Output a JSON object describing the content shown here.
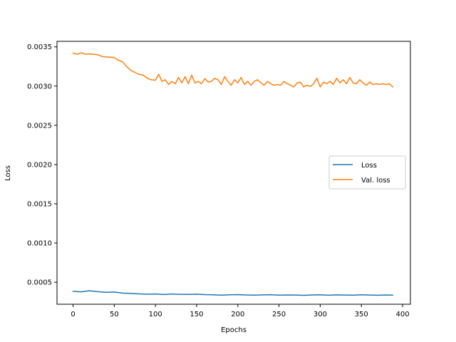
{
  "chart_data": {
    "type": "line",
    "xlabel": "Epochs",
    "ylabel": "Loss",
    "xlim": [
      -19.5,
      409.5
    ],
    "ylim": [
      0.00022,
      0.00357
    ],
    "xticks": [
      0,
      50,
      100,
      150,
      200,
      250,
      300,
      350,
      400
    ],
    "xtick_labels": [
      "0",
      "50",
      "100",
      "150",
      "200",
      "250",
      "300",
      "350",
      "400"
    ],
    "yticks": [
      0.0005,
      0.001,
      0.0015,
      0.002,
      0.0025,
      0.003,
      0.0035
    ],
    "ytick_labels": [
      "0.0005",
      "0.0010",
      "0.0015",
      "0.0020",
      "0.0025",
      "0.0030",
      "0.0035"
    ],
    "grid": false,
    "legend_position": "center-right",
    "series": [
      {
        "name": "Loss",
        "color": "#1f77b4",
        "x": [
          0,
          10,
          20,
          30,
          40,
          50,
          60,
          70,
          80,
          90,
          100,
          110,
          120,
          130,
          140,
          150,
          160,
          170,
          180,
          190,
          200,
          210,
          220,
          230,
          240,
          250,
          260,
          270,
          280,
          290,
          300,
          310,
          320,
          330,
          340,
          350,
          360,
          370,
          380,
          388
        ],
        "y": [
          0.000385,
          0.000378,
          0.000392,
          0.00038,
          0.000372,
          0.000376,
          0.000362,
          0.000358,
          0.000352,
          0.000348,
          0.00035,
          0.000344,
          0.00035,
          0.000346,
          0.000345,
          0.000348,
          0.000342,
          0.00034,
          0.000336,
          0.00034,
          0.000343,
          0.000338,
          0.000336,
          0.000339,
          0.000341,
          0.000336,
          0.000338,
          0.000337,
          0.000334,
          0.000338,
          0.00034,
          0.000335,
          0.000339,
          0.000337,
          0.000336,
          0.00034,
          0.000337,
          0.000335,
          0.000338,
          0.000336
        ]
      },
      {
        "name": "Val. loss",
        "color": "#ff7f0e",
        "x": [
          0,
          5,
          10,
          15,
          20,
          30,
          35,
          40,
          45,
          50,
          55,
          60,
          65,
          70,
          75,
          80,
          85,
          90,
          95,
          100,
          104,
          108,
          112,
          116,
          120,
          124,
          128,
          132,
          136,
          140,
          144,
          148,
          152,
          156,
          160,
          164,
          168,
          172,
          176,
          180,
          184,
          188,
          192,
          196,
          200,
          204,
          208,
          212,
          216,
          220,
          224,
          228,
          232,
          236,
          240,
          244,
          248,
          252,
          256,
          260,
          264,
          268,
          272,
          276,
          280,
          284,
          288,
          292,
          296,
          300,
          304,
          308,
          312,
          316,
          320,
          324,
          328,
          332,
          336,
          340,
          344,
          348,
          352,
          356,
          360,
          364,
          368,
          372,
          376,
          380,
          384,
          388
        ],
        "y": [
          0.00342,
          0.003405,
          0.003425,
          0.003405,
          0.00341,
          0.0034,
          0.003378,
          0.00337,
          0.003368,
          0.003365,
          0.00333,
          0.00331,
          0.00325,
          0.0032,
          0.003175,
          0.00315,
          0.00314,
          0.0031,
          0.00308,
          0.003075,
          0.00315,
          0.00306,
          0.00308,
          0.00302,
          0.00306,
          0.00303,
          0.00311,
          0.00304,
          0.00312,
          0.00303,
          0.00314,
          0.00304,
          0.00306,
          0.00303,
          0.003095,
          0.00305,
          0.00306,
          0.0031,
          0.00308,
          0.00302,
          0.00312,
          0.00306,
          0.00301,
          0.00308,
          0.00304,
          0.00311,
          0.00302,
          0.00306,
          0.00301,
          0.00306,
          0.00308,
          0.00304,
          0.00301,
          0.00306,
          0.00303,
          0.00301,
          0.00302,
          0.00301,
          0.00306,
          0.00303,
          0.00301,
          0.00299,
          0.00304,
          0.00305,
          0.00299,
          0.00301,
          0.002995,
          0.00303,
          0.0031,
          0.00299,
          0.00305,
          0.00303,
          0.00306,
          0.00302,
          0.0031,
          0.00304,
          0.00308,
          0.00303,
          0.00311,
          0.00304,
          0.00303,
          0.00308,
          0.00304,
          0.00301,
          0.00305,
          0.00302,
          0.00303,
          0.00302,
          0.00303,
          0.00302,
          0.00303,
          0.00299
        ]
      }
    ]
  }
}
